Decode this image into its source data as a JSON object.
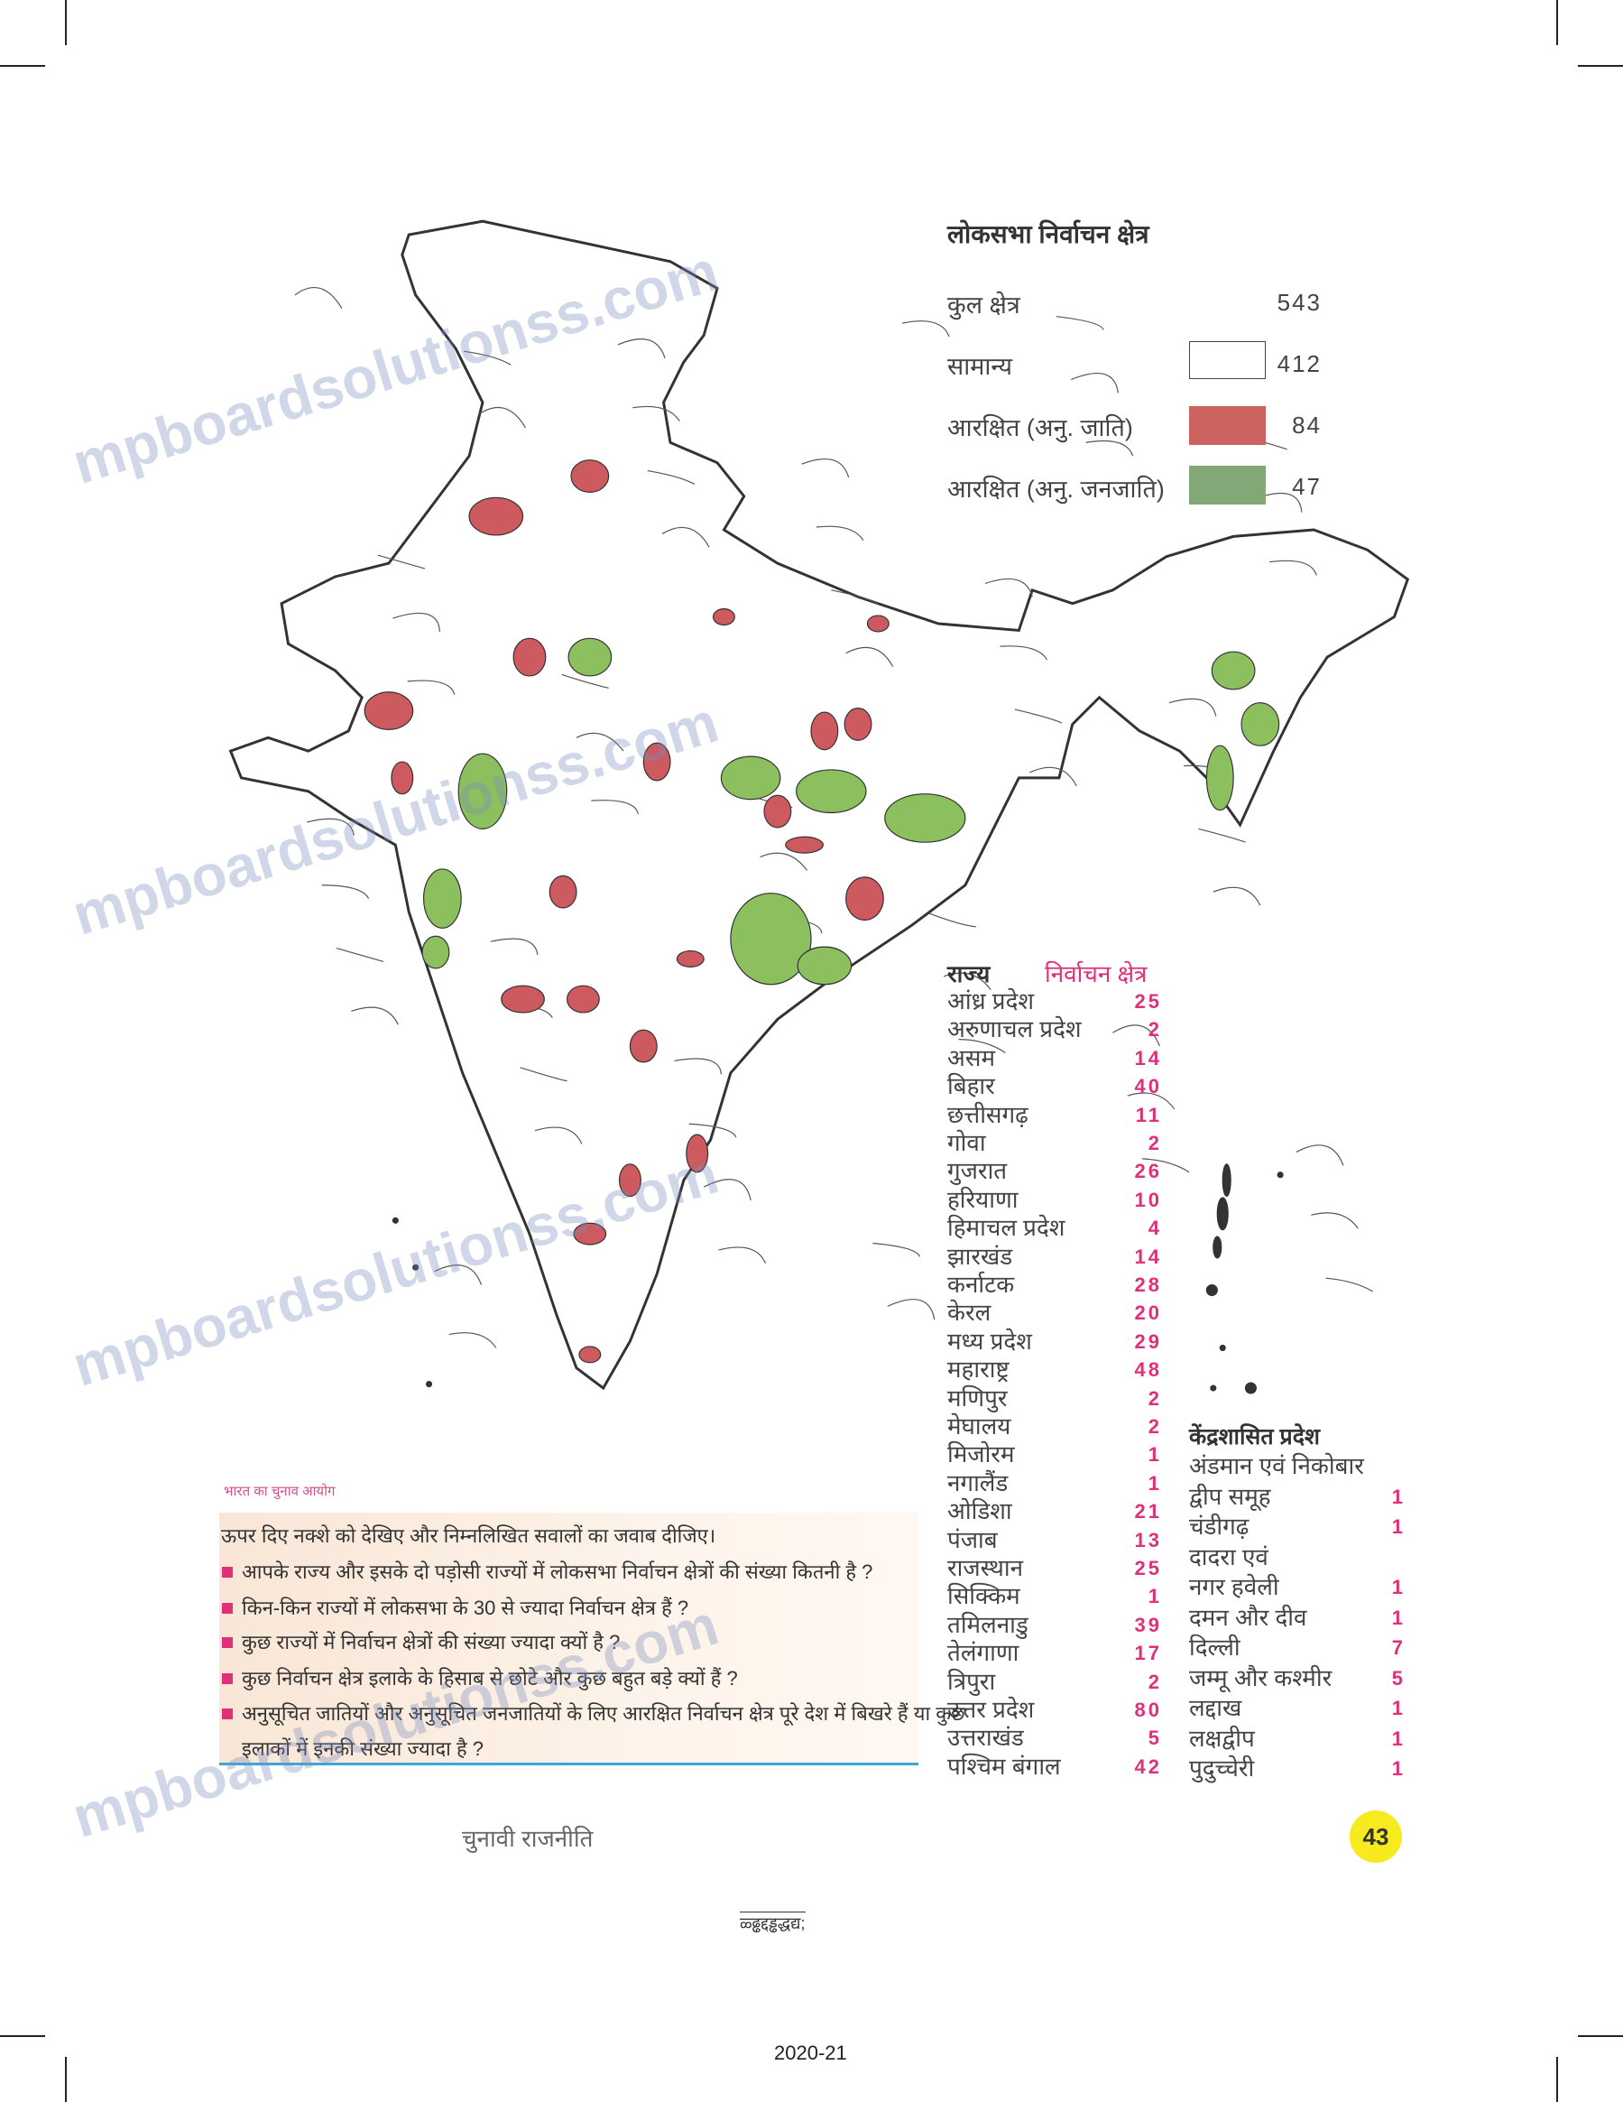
{
  "watermark": "mpboardsolutionss.com",
  "legend": {
    "title": "लोकसभा निर्वाचन क्षेत्र",
    "rows": [
      {
        "label": "कुल क्षेत्र",
        "value": "543",
        "color": null
      },
      {
        "label": "सामान्य",
        "value": "412",
        "color": "#ffffff"
      },
      {
        "label": "आरक्षित (अनु. जाति)",
        "value": "84",
        "color": "#cc6360"
      },
      {
        "label": "आरक्षित (अनु. जनजाति)",
        "value": "47",
        "color": "#82a877"
      }
    ]
  },
  "map_colors": {
    "general": "#ffffff",
    "sc": "#cc5a5e",
    "st": "#8cbf5e",
    "border": "#333333"
  },
  "states": {
    "header_state": "राज्य",
    "header_seats": "निर्वाचन क्षेत्र",
    "rows": [
      {
        "name": "आंध्र प्रदेश",
        "seats": "25"
      },
      {
        "name": "अरुणाचल प्रदेश",
        "seats": "2"
      },
      {
        "name": "असम",
        "seats": "14"
      },
      {
        "name": "बिहार",
        "seats": "40"
      },
      {
        "name": "छत्तीसगढ़",
        "seats": "11"
      },
      {
        "name": "गोवा",
        "seats": "2"
      },
      {
        "name": "गुजरात",
        "seats": "26"
      },
      {
        "name": "हरियाणा",
        "seats": "10"
      },
      {
        "name": "हिमाचल प्रदेश",
        "seats": "4"
      },
      {
        "name": "झारखंड",
        "seats": "14"
      },
      {
        "name": "कर्नाटक",
        "seats": "28"
      },
      {
        "name": "केरल",
        "seats": "20"
      },
      {
        "name": "मध्य प्रदेश",
        "seats": "29"
      },
      {
        "name": "महाराष्ट्र",
        "seats": "48"
      },
      {
        "name": "मणिपुर",
        "seats": "2"
      },
      {
        "name": "मेघालय",
        "seats": "2"
      },
      {
        "name": "मिजोरम",
        "seats": "1"
      },
      {
        "name": "नगालैंड",
        "seats": "1"
      },
      {
        "name": "ओडिशा",
        "seats": "21"
      },
      {
        "name": "पंजाब",
        "seats": "13"
      },
      {
        "name": "राजस्थान",
        "seats": "25"
      },
      {
        "name": "सिक्किम",
        "seats": "1"
      },
      {
        "name": "तमिलनाडु",
        "seats": "39"
      },
      {
        "name": "तेलंगाणा",
        "seats": "17"
      },
      {
        "name": "त्रिपुरा",
        "seats": "2"
      },
      {
        "name": "उत्तर प्रदेश",
        "seats": "80"
      },
      {
        "name": "उत्तराखंड",
        "seats": "5"
      },
      {
        "name": "पश्चिम बंगाल",
        "seats": "42"
      }
    ]
  },
  "union_territories": {
    "header": "केंद्रशासित प्रदेश",
    "rows": [
      {
        "name": "अंडमान एवं निकोबार",
        "seats": ""
      },
      {
        "name": "द्वीप समूह",
        "seats": "1"
      },
      {
        "name": "चंडीगढ़",
        "seats": "1"
      },
      {
        "name": "दादरा एवं",
        "seats": ""
      },
      {
        "name": "नगर हवेली",
        "seats": "1"
      },
      {
        "name": "दमन और दीव",
        "seats": "1"
      },
      {
        "name": "दिल्ली",
        "seats": "7"
      },
      {
        "name": "जम्मू और कश्मीर",
        "seats": "5"
      },
      {
        "name": "लद्दाख",
        "seats": "1"
      },
      {
        "name": "लक्षद्वीप",
        "seats": "1"
      },
      {
        "name": "पुदुच्चेरी",
        "seats": "1"
      }
    ]
  },
  "source": "भारत का चुनाव आयोग",
  "questions": {
    "intro": "ऊपर दिए नक्शे को देखिए और निम्नलिखित सवालों का जवाब दीजिए।",
    "items": [
      "आपके राज्य और इसके दो पड़ोसी राज्यों में लोकसभा निर्वाचन क्षेत्रों की संख्या कितनी है ?",
      "किन-किन राज्यों में लोकसभा के 30 से ज्यादा निर्वाचन क्षेत्र हैं ?",
      "कुछ राज्यों में निर्वाचन क्षेत्रों की संख्या ज्यादा क्यों है ?",
      "कुछ निर्वाचन क्षेत्र इलाके के हिसाब से छोटे और कुछ बहुत बड़े क्यों हैं ?",
      "अनुसूचित जातियों और अनुसूचित जनजातियों के लिए आरक्षित निर्वाचन क्षेत्र पूरे देश में बिखरे हैं या कुछ",
      "इलाकों में इनकी संख्या ज्यादा है ?"
    ]
  },
  "footer": {
    "chapter": "चुनावी राजनीति",
    "page_number": "43",
    "garbled": "ळ्ढ्ढद्दड्ढद्धद्य;",
    "year": "2020-21"
  }
}
